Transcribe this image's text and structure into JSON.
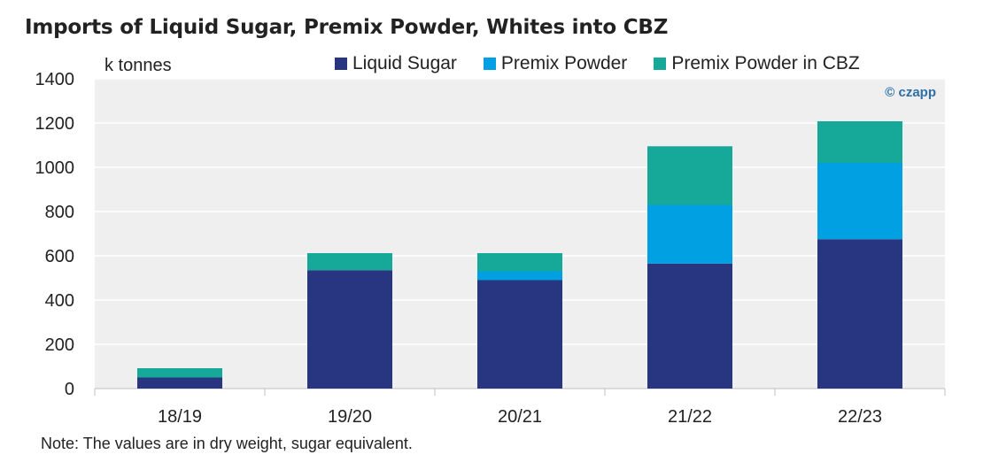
{
  "title": "Imports of Liquid Sugar, Premix Powder, Whites into CBZ",
  "unit_label": "k tonnes",
  "watermark": "© czapp",
  "note": "Note: The values are in dry weight, sugar equivalent.",
  "chart_data": {
    "type": "bar",
    "stacked": true,
    "title": "Imports of Liquid Sugar, Premix Powder, Whites into CBZ",
    "ylabel": "k tonnes",
    "ylim": [
      0,
      1400
    ],
    "yticks": [
      "0",
      "200",
      "400",
      "600",
      "800",
      "1000",
      "1200",
      "1400"
    ],
    "ytick_values": [
      0,
      200,
      400,
      600,
      800,
      1000,
      1200,
      1400
    ],
    "categories": [
      "18/19",
      "19/20",
      "20/21",
      "21/22",
      "22/23"
    ],
    "grid": true,
    "legend_position": "top",
    "series": [
      {
        "name": "Liquid Sugar",
        "color": "#283580",
        "values": [
          50,
          535,
          490,
          565,
          675
        ]
      },
      {
        "name": "Premix Powder",
        "color": "#00a0e2",
        "values": [
          0,
          0,
          40,
          265,
          345
        ]
      },
      {
        "name": "Premix Powder in CBZ",
        "color": "#16a99a",
        "values": [
          42,
          77,
          82,
          265,
          188
        ]
      }
    ]
  }
}
